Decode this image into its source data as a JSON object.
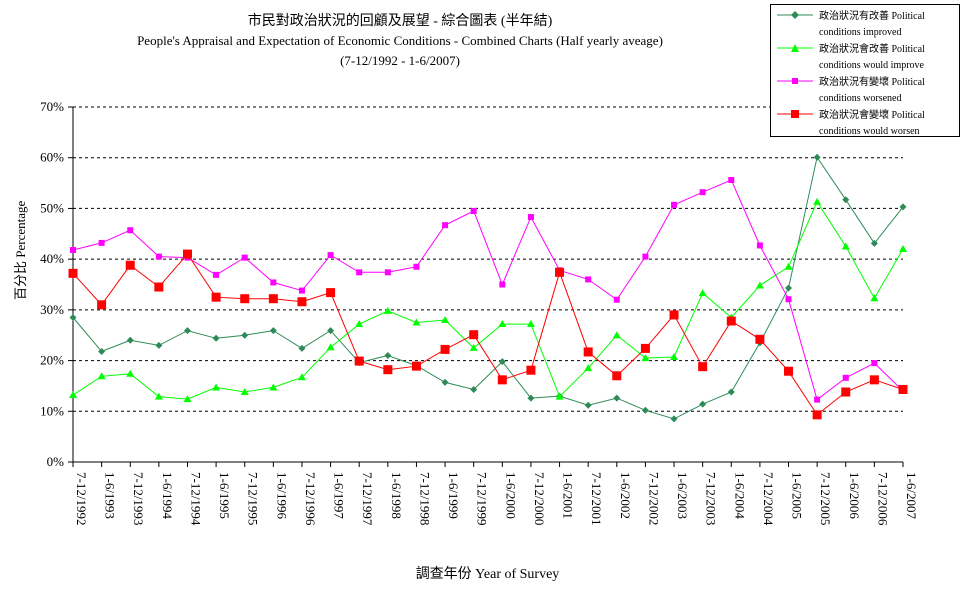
{
  "chart_data": {
    "type": "line",
    "title": "市民對政治狀況的回顧及展望 - 綜合圖表 (半年結)",
    "subtitle": "People's Appraisal and Expectation of Economic Conditions - Combined Charts (Half yearly aveage)",
    "period": "(7-12/1992 - 1-6/2007)",
    "xlabel": "調查年份 Year of Survey",
    "ylabel": "百分比 Percentage",
    "ylim": [
      0,
      70
    ],
    "yticks": [
      0,
      10,
      20,
      30,
      40,
      50,
      60,
      70
    ],
    "ytick_labels": [
      "0%",
      "10%",
      "20%",
      "30%",
      "40%",
      "50%",
      "60%",
      "70%"
    ],
    "grid": "horizontal dashed",
    "legend_position": "top-right",
    "categories": [
      "7-12/1992",
      "1-6/1993",
      "7-12/1993",
      "1-6/1994",
      "7-12/1994",
      "1-6/1995",
      "7-12/1995",
      "1-6/1996",
      "7-12/1996",
      "1-6/1997",
      "7-12/1997",
      "1-6/1998",
      "7-12/1998",
      "1-6/1999",
      "7-12/1999",
      "1-6/2000",
      "7-12/2000",
      "1-6/2001",
      "7-12/2001",
      "1-6/2002",
      "7-12/2002",
      "1-6/2003",
      "7-12/2003",
      "1-6/2004",
      "7-12/2004",
      "1-6/2005",
      "7-12/2005",
      "1-6/2006",
      "7-12/2006",
      "1-6/2007"
    ],
    "series": [
      {
        "name": "政治狀況有改善 Political conditions improved",
        "legend_lines": [
          "政治狀況有改善 Political",
          "conditions improved"
        ],
        "color": "#2e8b57",
        "marker": "diamond",
        "values": [
          28.5,
          21.8,
          24,
          23,
          25.9,
          24.4,
          25,
          25.9,
          22.4,
          25.9,
          19.6,
          21,
          19,
          15.7,
          14.3,
          19.8,
          12.6,
          13,
          11.2,
          12.6,
          10.2,
          8.5,
          11.4,
          13.8,
          23.5,
          34.3,
          60.1,
          51.7,
          43.1,
          50.3
        ]
      },
      {
        "name": "政治狀況會改善 Political conditions would improve",
        "legend_lines": [
          "政治狀況會改善 Political",
          "conditions would improve"
        ],
        "color": "#00ff00",
        "marker": "triangle",
        "values": [
          13.2,
          16.9,
          17.4,
          12.9,
          12.4,
          14.7,
          13.8,
          14.7,
          16.7,
          22.6,
          27.2,
          29.8,
          27.5,
          28,
          22.5,
          27.2,
          27.2,
          12.9,
          18.5,
          25,
          20.5,
          20.7,
          33.3,
          28.5,
          34.8,
          38.5,
          51.3,
          42.5,
          32.3,
          42
        ]
      },
      {
        "name": "政治狀況有變壞 Political conditions worsened",
        "legend_lines": [
          "政治狀況有變壞 Political",
          "conditions worsened"
        ],
        "color": "#ff00ff",
        "marker": "square",
        "values": [
          41.8,
          43.2,
          45.7,
          40.5,
          40.3,
          36.9,
          40.3,
          35.4,
          33.8,
          40.8,
          37.4,
          37.4,
          38.5,
          46.7,
          49.5,
          35,
          48.3,
          37.8,
          36,
          32,
          40.5,
          50.7,
          53.2,
          55.6,
          42.7,
          32.1,
          12.3,
          16.6,
          19.5,
          14
        ]
      },
      {
        "name": "政治狀況會變壞 Political conditions would worsen",
        "legend_lines": [
          "政治狀況會變壞 Political",
          "conditions would worsen"
        ],
        "color": "#ff0000",
        "marker": "square-large",
        "values": [
          37.2,
          31,
          38.8,
          34.5,
          41,
          32.5,
          32.2,
          32.2,
          31.6,
          33.4,
          19.9,
          18.2,
          18.9,
          22.2,
          25.1,
          16.2,
          18.1,
          37.4,
          21.7,
          17,
          22.4,
          29,
          18.8,
          27.8,
          24.2,
          17.9,
          9.3,
          13.8,
          16.2,
          14.3
        ]
      }
    ]
  }
}
